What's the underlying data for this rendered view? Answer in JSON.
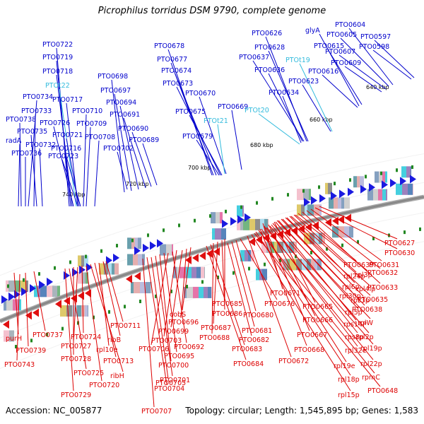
{
  "title": "Picrophilus torridus DSM 9790, complete genome",
  "footer": {
    "accession": "Accession: NC_005877",
    "summary": "Topology: circular; Length: 1,545,895 bp; Genes: 1,583"
  },
  "colors": {
    "forward_label": "#0000cc",
    "reverse_label": "#dd0000",
    "rna_label": "#33bbdd",
    "backbone": "#888888",
    "tick": "#228822"
  },
  "ruler_labels": [
    "740 kbp",
    "720 kbp",
    "700 kbp",
    "680 kbp",
    "660 kbp",
    "640 kbp"
  ],
  "top_labels": [
    {
      "text": "PTO0722",
      "kind": "forward"
    },
    {
      "text": "PTO0719",
      "kind": "forward"
    },
    {
      "text": "PTO0718",
      "kind": "forward"
    },
    {
      "text": "PTOt22",
      "kind": "rna"
    },
    {
      "text": "PTO0734",
      "kind": "forward"
    },
    {
      "text": "PTO0717",
      "kind": "forward"
    },
    {
      "text": "PTO0733",
      "kind": "forward"
    },
    {
      "text": "PTO0710",
      "kind": "forward"
    },
    {
      "text": "PTO0738",
      "kind": "forward"
    },
    {
      "text": "PTO0726",
      "kind": "forward"
    },
    {
      "text": "PTO0709",
      "kind": "forward"
    },
    {
      "text": "PTO0735",
      "kind": "forward"
    },
    {
      "text": "PTO0721",
      "kind": "forward"
    },
    {
      "text": "PTO0708",
      "kind": "forward"
    },
    {
      "text": "radA",
      "kind": "forward"
    },
    {
      "text": "PTO0732",
      "kind": "forward"
    },
    {
      "text": "PTO0716",
      "kind": "forward"
    },
    {
      "text": "PTO0736",
      "kind": "forward"
    },
    {
      "text": "PTO0723",
      "kind": "forward"
    },
    {
      "text": "PTO0698",
      "kind": "forward"
    },
    {
      "text": "PTO0697",
      "kind": "forward"
    },
    {
      "text": "PTO0694",
      "kind": "forward"
    },
    {
      "text": "PTO0691",
      "kind": "forward"
    },
    {
      "text": "PTO0690",
      "kind": "forward"
    },
    {
      "text": "PTO0689",
      "kind": "forward"
    },
    {
      "text": "PTO0702",
      "kind": "forward"
    },
    {
      "text": "PTO0678",
      "kind": "forward"
    },
    {
      "text": "PTO0677",
      "kind": "forward"
    },
    {
      "text": "PTO0674",
      "kind": "forward"
    },
    {
      "text": "PTO0673",
      "kind": "forward"
    },
    {
      "text": "PTO0670",
      "kind": "forward"
    },
    {
      "text": "PTO0675",
      "kind": "forward"
    },
    {
      "text": "PTO0669",
      "kind": "forward"
    },
    {
      "text": "PTOt21",
      "kind": "rna"
    },
    {
      "text": "PTO0679",
      "kind": "forward"
    },
    {
      "text": "PTO0626",
      "kind": "forward"
    },
    {
      "text": "PTO0628",
      "kind": "forward"
    },
    {
      "text": "PTO0637",
      "kind": "forward"
    },
    {
      "text": "PTO0636",
      "kind": "forward"
    },
    {
      "text": "PTO0634",
      "kind": "forward"
    },
    {
      "text": "PTOt20",
      "kind": "rna"
    },
    {
      "text": "PTOt19",
      "kind": "rna"
    },
    {
      "text": "PTO0623",
      "kind": "forward"
    },
    {
      "text": "glyA",
      "kind": "forward"
    },
    {
      "text": "PTO0615",
      "kind": "forward"
    },
    {
      "text": "PTO0616",
      "kind": "forward"
    },
    {
      "text": "PTO0604",
      "kind": "forward"
    },
    {
      "text": "PTO0605",
      "kind": "forward"
    },
    {
      "text": "PTO0597",
      "kind": "forward"
    },
    {
      "text": "PTO0598",
      "kind": "forward"
    },
    {
      "text": "PTO0607",
      "kind": "forward"
    },
    {
      "text": "PTO0609",
      "kind": "forward"
    }
  ],
  "bottom_labels": [
    {
      "text": "PTO0627"
    },
    {
      "text": "PTO0630"
    },
    {
      "text": "PTO0631"
    },
    {
      "text": "PTO0632"
    },
    {
      "text": "PTO0633"
    },
    {
      "text": "PTO0639"
    },
    {
      "text": "rpl3p"
    },
    {
      "text": "rpl24p"
    },
    {
      "text": "rpl4lp"
    },
    {
      "text": "rpl6p"
    },
    {
      "text": "rps3p"
    },
    {
      "text": "PTO0635"
    },
    {
      "text": "rpl30p"
    },
    {
      "text": "PTO0638"
    },
    {
      "text": "rpl5p"
    },
    {
      "text": "rplW"
    },
    {
      "text": "PTO0671"
    },
    {
      "text": "PTO0665"
    },
    {
      "text": "rps14P"
    },
    {
      "text": "rpl2p"
    },
    {
      "text": "PTO0666"
    },
    {
      "text": "rps8p"
    },
    {
      "text": "rpl19p"
    },
    {
      "text": "PTO0667"
    },
    {
      "text": "rpl32e"
    },
    {
      "text": "rpl22p"
    },
    {
      "text": "PTO0668"
    },
    {
      "text": "rpl19e"
    },
    {
      "text": "rpmC"
    },
    {
      "text": "rpl18p"
    },
    {
      "text": "PTO0648"
    },
    {
      "text": "rpl15p"
    },
    {
      "text": "PTO0672"
    },
    {
      "text": "PTO0676"
    },
    {
      "text": "PTO0685"
    },
    {
      "text": "PTO0680"
    },
    {
      "text": "PTO0686"
    },
    {
      "text": "PTO0681"
    },
    {
      "text": "PTO0687"
    },
    {
      "text": "PTO0682"
    },
    {
      "text": "PTO0688"
    },
    {
      "text": "PTO0683"
    },
    {
      "text": "PTO0684"
    },
    {
      "text": "cobS"
    },
    {
      "text": "PTO0696"
    },
    {
      "text": "PTO0699"
    },
    {
      "text": "PTO0703"
    },
    {
      "text": "PTO0692"
    },
    {
      "text": "PTO0706"
    },
    {
      "text": "PTO0695"
    },
    {
      "text": "PTO0700"
    },
    {
      "text": "PTO0701"
    },
    {
      "text": "PTO0705"
    },
    {
      "text": "PTO0704"
    },
    {
      "text": "PTO0707"
    },
    {
      "text": "PTO0711"
    },
    {
      "text": "ribB"
    },
    {
      "text": "rpl10e"
    },
    {
      "text": "PTO0713"
    },
    {
      "text": "ribH"
    },
    {
      "text": "PTO0720"
    },
    {
      "text": "PTO0724"
    },
    {
      "text": "PTO0727"
    },
    {
      "text": "PTO0728"
    },
    {
      "text": "PTO0725"
    },
    {
      "text": "PTO0729"
    },
    {
      "text": "PTO0737"
    },
    {
      "text": "purH"
    },
    {
      "text": "PTO0739"
    },
    {
      "text": "PTO0743"
    }
  ]
}
